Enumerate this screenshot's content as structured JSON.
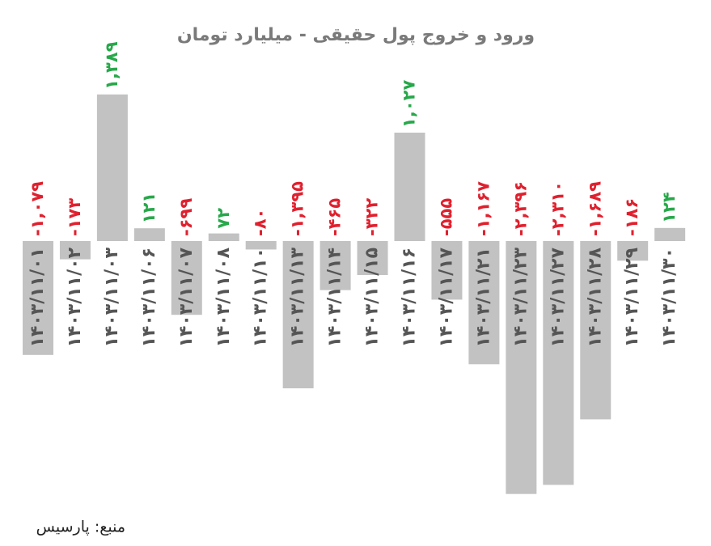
{
  "chart_data": {
    "type": "bar",
    "title": "ورود و خروج پول حقیقی - میلیارد تومان",
    "source": "منبع: پارسیس",
    "categories": [
      "۱۴۰۳/۱۱/۰۱",
      "۱۴۰۳/۱۱/۰۲",
      "۱۴۰۳/۱۱/۰۳",
      "۱۴۰۳/۱۱/۰۶",
      "۱۴۰۳/۱۱/۰۷",
      "۱۴۰۳/۱۱/۰۸",
      "۱۴۰۳/۱۱/۱۰",
      "۱۴۰۳/۱۱/۱۳",
      "۱۴۰۳/۱۱/۱۴",
      "۱۴۰۳/۱۱/۱۵",
      "۱۴۰۳/۱۱/۱۶",
      "۱۴۰۳/۱۱/۱۷",
      "۱۴۰۳/۱۱/۲۱",
      "۱۴۰۳/۱۱/۲۳",
      "۱۴۰۳/۱۱/۲۷",
      "۱۴۰۳/۱۱/۲۸",
      "۱۴۰۳/۱۱/۲۹",
      "۱۴۰۳/۱۱/۳۰"
    ],
    "values": [
      -1079,
      -173,
      1389,
      121,
      -699,
      72,
      -80,
      -1395,
      -465,
      -322,
      1027,
      -555,
      -1167,
      -2396,
      -2310,
      -1689,
      -186,
      124
    ],
    "value_labels": [
      "-۱,۰۷۹",
      "-۱۷۳",
      "۱,۳۸۹",
      "۱۲۱",
      "-۶۹۹",
      "۷۲",
      "-۸۰",
      "-۱,۳۹۵",
      "-۴۶۵",
      "-۳۲۲",
      "۱,۰۲۷",
      "-۵۵۵",
      "-۱,۱۶۷",
      "-۲,۳۹۶",
      "-۲,۳۱۰",
      "-۱,۶۸۹",
      "-۱۸۶",
      "۱۲۴"
    ],
    "color": "#c2c2c2",
    "positive_label_color": "#27a84a",
    "negative_label_color": "#e0202e"
  }
}
